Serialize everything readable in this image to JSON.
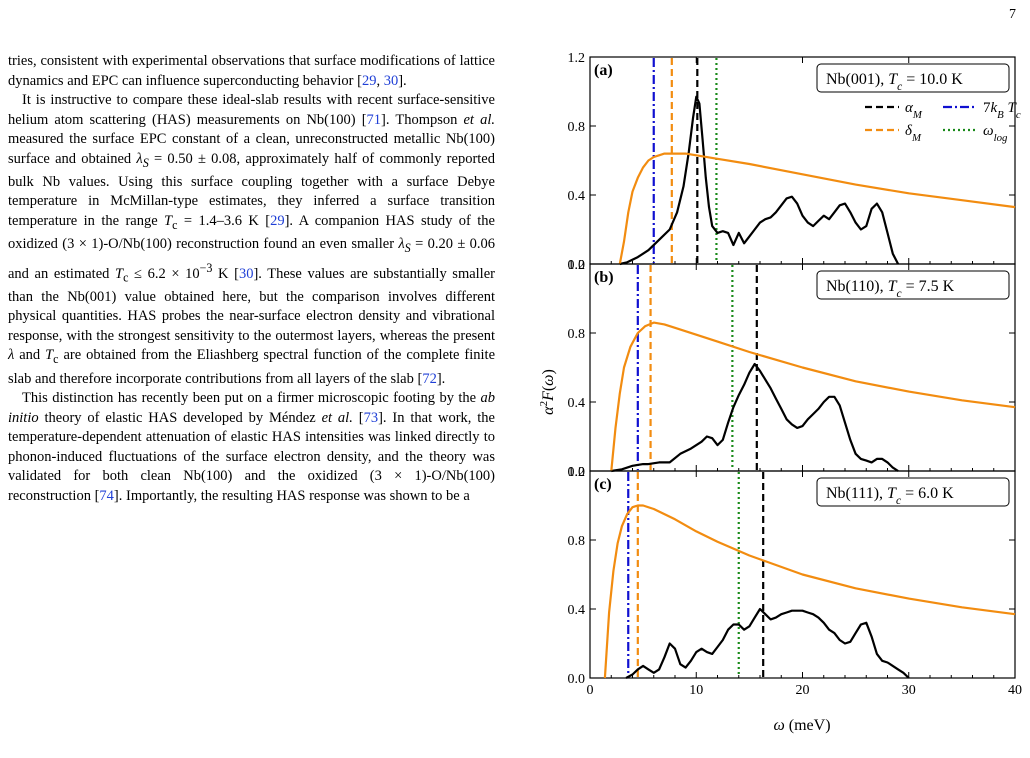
{
  "page_number": "7",
  "text": {
    "p1": [
      {
        "t": "tries, consistent with experimental observations that surface modifications of lattice dynamics and EPC can influence superconducting behavior ["
      },
      {
        "t": "29",
        "c": 1
      },
      {
        "t": ", "
      },
      {
        "t": "30",
        "c": 1
      },
      {
        "t": "]."
      }
    ],
    "p2": [
      {
        "t": "It is instructive to compare these ideal-slab results with recent surface-sensitive helium atom scattering (HAS) measurements on Nb(100) ["
      },
      {
        "t": "71",
        "c": 1
      },
      {
        "t": "]. Thompson "
      },
      {
        "t": "et al.",
        "i": 1
      },
      {
        "t": " measured the surface EPC constant of a clean, unreconstructed metallic Nb(100) surface and obtained "
      },
      {
        "t": "λ",
        "i": 1
      },
      {
        "t": "S",
        "i": 1,
        "sub": 1
      },
      {
        "t": " = 0.50 ± 0.08, approximately half of commonly reported bulk Nb values. Using this surface coupling together with a surface Debye temperature in McMillan-type estimates, they inferred a surface transition temperature in the range "
      },
      {
        "t": "T",
        "i": 1
      },
      {
        "t": "c",
        "sub": 1
      },
      {
        "t": " = 1.4–3.6 K ["
      },
      {
        "t": "29",
        "c": 1
      },
      {
        "t": "]. A companion HAS study of the oxidized (3 × 1)-O/Nb(100) reconstruction found an even smaller "
      },
      {
        "t": "λ",
        "i": 1
      },
      {
        "t": "S",
        "i": 1,
        "sub": 1
      },
      {
        "t": " = 0.20 ± 0.06 and an estimated "
      },
      {
        "t": "T",
        "i": 1
      },
      {
        "t": "c",
        "sub": 1
      },
      {
        "t": " ≤ 6.2 × 10"
      },
      {
        "t": "−3",
        "sup": 1
      },
      {
        "t": " K ["
      },
      {
        "t": "30",
        "c": 1
      },
      {
        "t": "]. These values are substantially smaller than the Nb(001) value obtained here, but the comparison involves different physical quantities. HAS probes the near-surface electron density and vibrational response, with the strongest sensitivity to the outermost layers, whereas the present "
      },
      {
        "t": "λ",
        "i": 1
      },
      {
        "t": " and "
      },
      {
        "t": "T",
        "i": 1
      },
      {
        "t": "c",
        "sub": 1
      },
      {
        "t": " are obtained from the Eliashberg spectral function of the complete finite slab and therefore incorporate contributions from all layers of the slab ["
      },
      {
        "t": "72",
        "c": 1
      },
      {
        "t": "]."
      }
    ],
    "p3": [
      {
        "t": "This distinction has recently been put on a firmer microscopic footing by the "
      },
      {
        "t": "ab initio",
        "i": 1
      },
      {
        "t": " theory of elastic HAS developed by Méndez "
      },
      {
        "t": "et al.",
        "i": 1
      },
      {
        "t": " ["
      },
      {
        "t": "73",
        "c": 1
      },
      {
        "t": "]. In that work, the temperature-dependent attenuation of elastic HAS intensities was linked directly to phonon-induced fluctuations of the surface electron density, and the theory was validated for both clean Nb(100) and the oxidized (3 × 1)-O/Nb(100) reconstruction ["
      },
      {
        "t": "74",
        "c": 1
      },
      {
        "t": "]. Importantly, the resulting HAS response was shown to be a"
      }
    ]
  },
  "figure": {
    "ylabel": "α²F(ω)",
    "xlabel": "ω (meV)",
    "legend": [
      {
        "label": "α_M",
        "style": "dashed",
        "color": "#000000"
      },
      {
        "label": "7k_B T_c",
        "style": "dashdot",
        "color": "#1010d0"
      },
      {
        "label": "δ_M",
        "style": "dashed",
        "color": "#f28c10"
      },
      {
        "label": "ω_log",
        "style": "dotted",
        "color": "#1a8a1a"
      }
    ],
    "colors": {
      "spectrum": "#000000",
      "orange": "#f28c10",
      "blue": "#1010d0",
      "green": "#1a8a1a"
    }
  },
  "chart_data": [
    {
      "type": "line",
      "panel": "(a)",
      "box_label": "Nb(001), T_c = 10.0 K",
      "xlim": [
        0,
        40
      ],
      "ylim": [
        0,
        1.2
      ],
      "yticks": [
        0.0,
        0.4,
        0.8,
        1.2
      ],
      "vlines": {
        "alpha_M": 10.1,
        "7kBTc": 6.0,
        "delta_M": 7.7,
        "omega_log": 11.9
      },
      "series": [
        {
          "name": "a2F",
          "x": [
            2.8,
            3.5,
            4.5,
            5.5,
            6.5,
            7.5,
            8.2,
            8.8,
            9.3,
            9.7,
            10.0,
            10.3,
            10.6,
            10.9,
            11.2,
            11.5,
            12.0,
            12.5,
            13.0,
            13.5,
            14.0,
            14.5,
            15.0,
            15.5,
            16.0,
            16.5,
            17.0,
            17.5,
            18.0,
            18.5,
            19.0,
            19.5,
            20.0,
            20.5,
            21.0,
            21.5,
            22.0,
            22.5,
            23.0,
            23.5,
            24.0,
            24.5,
            25.0,
            25.5,
            26.0,
            26.5,
            27.0,
            27.5,
            28.0,
            28.5,
            29.0
          ],
          "y": [
            0.0,
            0.01,
            0.04,
            0.08,
            0.14,
            0.2,
            0.3,
            0.45,
            0.65,
            0.85,
            0.97,
            0.93,
            0.72,
            0.5,
            0.33,
            0.22,
            0.18,
            0.19,
            0.18,
            0.11,
            0.18,
            0.12,
            0.16,
            0.2,
            0.24,
            0.26,
            0.27,
            0.3,
            0.34,
            0.38,
            0.39,
            0.35,
            0.28,
            0.24,
            0.22,
            0.25,
            0.28,
            0.26,
            0.3,
            0.34,
            0.35,
            0.3,
            0.24,
            0.2,
            0.22,
            0.32,
            0.35,
            0.3,
            0.18,
            0.06,
            0.0
          ]
        },
        {
          "name": "delta",
          "x": [
            2.8,
            3.2,
            3.6,
            4.0,
            4.5,
            5.0,
            5.5,
            6.0,
            6.5,
            7.0,
            8.0,
            9.0,
            10.0,
            12.0,
            15.0,
            20.0,
            25.0,
            30.0,
            35.0,
            40.0
          ],
          "y": [
            0.0,
            0.13,
            0.3,
            0.42,
            0.5,
            0.56,
            0.6,
            0.62,
            0.63,
            0.64,
            0.64,
            0.64,
            0.63,
            0.61,
            0.58,
            0.52,
            0.46,
            0.41,
            0.37,
            0.33
          ]
        }
      ]
    },
    {
      "type": "line",
      "panel": "(b)",
      "box_label": "Nb(110), T_c = 7.5 K",
      "xlim": [
        0,
        40
      ],
      "ylim": [
        0,
        1.2
      ],
      "yticks": [
        0.0,
        0.4,
        0.8,
        1.2
      ],
      "vlines": {
        "alpha_M": 15.7,
        "7kBTc": 4.5,
        "delta_M": 5.7,
        "omega_log": 13.4
      },
      "series": [
        {
          "name": "a2F",
          "x": [
            2.0,
            3.0,
            4.0,
            5.0,
            5.5,
            6.5,
            7.5,
            8.5,
            9.5,
            10.5,
            11.0,
            11.5,
            12.0,
            12.5,
            13.0,
            13.5,
            14.0,
            14.5,
            15.0,
            15.5,
            16.0,
            16.5,
            17.0,
            17.5,
            18.0,
            18.5,
            19.0,
            19.5,
            20.0,
            20.5,
            21.0,
            21.5,
            22.0,
            22.5,
            23.0,
            23.5,
            24.0,
            24.5,
            25.0,
            25.5,
            26.0,
            26.5,
            27.0,
            27.5,
            28.0,
            28.5,
            29.0
          ],
          "y": [
            0.0,
            0.01,
            0.03,
            0.04,
            0.04,
            0.05,
            0.05,
            0.1,
            0.13,
            0.17,
            0.2,
            0.19,
            0.15,
            0.18,
            0.28,
            0.37,
            0.44,
            0.5,
            0.57,
            0.62,
            0.58,
            0.53,
            0.48,
            0.42,
            0.36,
            0.3,
            0.27,
            0.25,
            0.26,
            0.3,
            0.33,
            0.36,
            0.4,
            0.43,
            0.43,
            0.38,
            0.28,
            0.18,
            0.1,
            0.07,
            0.06,
            0.05,
            0.07,
            0.07,
            0.05,
            0.02,
            0.0
          ]
        },
        {
          "name": "delta",
          "x": [
            2.0,
            2.4,
            2.8,
            3.2,
            3.8,
            4.5,
            5.2,
            6.0,
            7.0,
            8.0,
            10.0,
            12.0,
            15.0,
            20.0,
            25.0,
            30.0,
            35.0,
            40.0
          ],
          "y": [
            0.0,
            0.25,
            0.45,
            0.6,
            0.72,
            0.8,
            0.84,
            0.86,
            0.85,
            0.83,
            0.79,
            0.75,
            0.69,
            0.6,
            0.52,
            0.46,
            0.41,
            0.37
          ]
        }
      ]
    },
    {
      "type": "line",
      "panel": "(c)",
      "box_label": "Nb(111), T_c = 6.0 K",
      "xlim": [
        0,
        40
      ],
      "ylim": [
        0,
        1.2
      ],
      "yticks": [
        0.0,
        0.4,
        0.8,
        1.2
      ],
      "vlines": {
        "alpha_M": 16.3,
        "7kBTc": 3.6,
        "delta_M": 4.5,
        "omega_log": 14.0
      },
      "series": [
        {
          "name": "a2F",
          "x": [
            3.4,
            4.0,
            4.5,
            5.0,
            5.5,
            6.0,
            6.5,
            7.0,
            7.5,
            8.0,
            8.5,
            9.0,
            9.5,
            10.0,
            10.5,
            11.0,
            11.5,
            12.0,
            12.5,
            13.0,
            13.5,
            14.0,
            14.5,
            15.0,
            15.5,
            16.0,
            16.5,
            17.0,
            17.5,
            18.0,
            18.5,
            19.0,
            19.5,
            20.0,
            20.5,
            21.0,
            21.5,
            22.0,
            22.5,
            23.0,
            23.5,
            24.0,
            24.5,
            25.0,
            25.5,
            26.0,
            26.5,
            27.0,
            27.5,
            28.0,
            28.5,
            29.0,
            29.5,
            30.0
          ],
          "y": [
            0.0,
            0.02,
            0.05,
            0.07,
            0.05,
            0.03,
            0.05,
            0.12,
            0.2,
            0.17,
            0.08,
            0.06,
            0.1,
            0.15,
            0.17,
            0.15,
            0.14,
            0.18,
            0.22,
            0.28,
            0.31,
            0.31,
            0.28,
            0.3,
            0.35,
            0.4,
            0.37,
            0.34,
            0.35,
            0.37,
            0.38,
            0.39,
            0.39,
            0.39,
            0.38,
            0.37,
            0.35,
            0.32,
            0.28,
            0.26,
            0.22,
            0.2,
            0.21,
            0.26,
            0.31,
            0.32,
            0.24,
            0.14,
            0.1,
            0.09,
            0.07,
            0.05,
            0.03,
            0.0
          ]
        },
        {
          "name": "delta",
          "x": [
            1.4,
            1.8,
            2.2,
            2.6,
            3.0,
            3.5,
            4.0,
            4.5,
            5.0,
            6.0,
            7.0,
            8.0,
            10.0,
            12.0,
            15.0,
            20.0,
            25.0,
            30.0,
            35.0,
            40.0
          ],
          "y": [
            0.0,
            0.38,
            0.62,
            0.78,
            0.88,
            0.95,
            0.99,
            1.0,
            1.0,
            0.98,
            0.95,
            0.92,
            0.85,
            0.79,
            0.71,
            0.6,
            0.52,
            0.46,
            0.41,
            0.37
          ]
        }
      ]
    }
  ]
}
